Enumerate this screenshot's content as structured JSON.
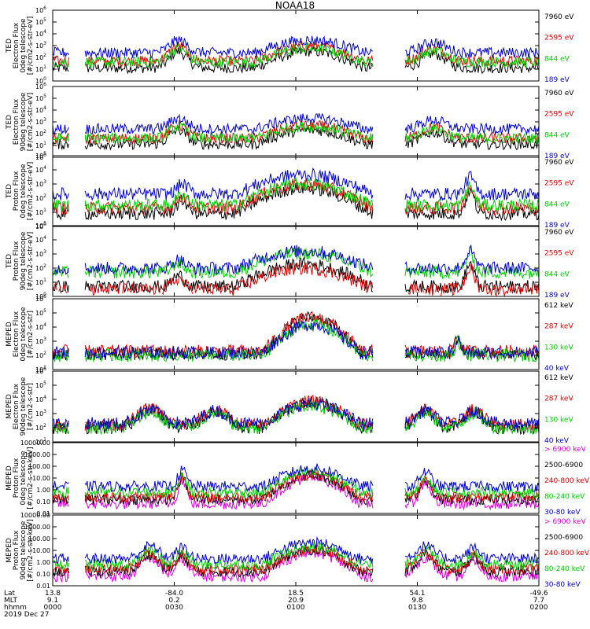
{
  "title": "NOAA18",
  "chart_data": [
    {
      "type": "line",
      "ylabel": [
        "TED",
        "Electron Flux",
        "0deg telescope",
        "[#/cm2-s-str-eV]"
      ],
      "y_ticks": [
        "10^0",
        "10^1",
        "10^2",
        "10^3",
        "10^4",
        "10^5",
        "10^6"
      ],
      "ylim_log10": [
        0,
        6
      ],
      "series": [
        {
          "name": "7960 eV",
          "color": "#000000",
          "profile": "ted_e0",
          "level": 1.1
        },
        {
          "name": "2595 eV",
          "color": "#dd0000",
          "profile": "ted_e0",
          "level": 1.7
        },
        {
          "name": "844 eV",
          "color": "#00cc00",
          "profile": "ted_e0",
          "level": 1.6
        },
        {
          "name": "189 eV",
          "color": "#0000cc",
          "profile": "ted_e0",
          "level": 2.4
        }
      ]
    },
    {
      "type": "line",
      "ylabel": [
        "TED",
        "Electron Flux",
        "90deg telescope",
        "[#/cm2-s-str-eV]"
      ],
      "y_ticks": [
        "10^0",
        "10^1",
        "10^2",
        "10^3",
        "10^4",
        "10^5",
        "10^6"
      ],
      "ylim_log10": [
        0,
        6
      ],
      "series": [
        {
          "name": "7960 eV",
          "color": "#000000",
          "profile": "ted_e90",
          "level": 1.1
        },
        {
          "name": "2595 eV",
          "color": "#dd0000",
          "profile": "ted_e90",
          "level": 1.6
        },
        {
          "name": "844 eV",
          "color": "#00cc00",
          "profile": "ted_e90",
          "level": 1.6
        },
        {
          "name": "189 eV",
          "color": "#0000cc",
          "profile": "ted_e90",
          "level": 2.4
        }
      ]
    },
    {
      "type": "line",
      "ylabel": [
        "TED",
        "Proton Flux",
        "0deg telescope",
        "[#/cm2-s-str-eV]"
      ],
      "y_ticks": [
        "10^0",
        "10^1",
        "10^2",
        "10^3",
        "10^4",
        "10^5"
      ],
      "ylim_log10": [
        0,
        5
      ],
      "series": [
        {
          "name": "7960 eV",
          "color": "#000000",
          "profile": "ted_p0",
          "level": 0.9
        },
        {
          "name": "2595 eV",
          "color": "#dd0000",
          "profile": "ted_p0",
          "level": 1.3
        },
        {
          "name": "844 eV",
          "color": "#00cc00",
          "profile": "ted_p0",
          "level": 1.5
        },
        {
          "name": "189 eV",
          "color": "#0000cc",
          "profile": "ted_p0",
          "level": 2.3
        }
      ]
    },
    {
      "type": "line",
      "ylabel": [
        "TED",
        "Proton Flux",
        "90deg telescope",
        "[#/cm2-s-str-eV]"
      ],
      "y_ticks": [
        "10^0",
        "10^1",
        "10^2",
        "10^3",
        "10^4",
        "10^5"
      ],
      "ylim_log10": [
        0,
        5
      ],
      "series": [
        {
          "name": "7960 eV",
          "color": "#000000",
          "profile": "ted_p90",
          "level": 0.7
        },
        {
          "name": "2595 eV",
          "color": "#dd0000",
          "profile": "ted_p90",
          "level": 0.5
        },
        {
          "name": "844 eV",
          "color": "#00cc00",
          "profile": "ted_p90",
          "level": 1.7
        },
        {
          "name": "189 eV",
          "color": "#0000cc",
          "profile": "ted_p90",
          "level": 2.0
        }
      ]
    },
    {
      "type": "line",
      "ylabel": [
        "MEPED",
        "Electron Flux",
        "0deg telescope",
        "[#/cm2-s-str]"
      ],
      "y_ticks": [
        "10^1",
        "10^2",
        "10^3",
        "10^4",
        "10^5",
        "10^6"
      ],
      "ylim_log10": [
        1,
        6
      ],
      "series": [
        {
          "name": "612 keV",
          "color": "#000000",
          "profile": "mep_e0",
          "level": 2.1
        },
        {
          "name": "287 keV",
          "color": "#dd0000",
          "profile": "mep_e0",
          "level": 2.3
        },
        {
          "name": "130 keV",
          "color": "#00cc00",
          "profile": "mep_e0",
          "level": 2.0
        },
        {
          "name": "40 keV",
          "color": "#0000cc",
          "profile": "mep_e0",
          "level": 2.2
        }
      ]
    },
    {
      "type": "line",
      "ylabel": [
        "MEPED",
        "Electron Flux",
        "90deg telescope",
        "[#/cm2-s-str]"
      ],
      "y_ticks": [
        "10^1",
        "10^2",
        "10^3",
        "10^4",
        "10^5",
        "10^6"
      ],
      "ylim_log10": [
        1,
        6
      ],
      "series": [
        {
          "name": "612 keV",
          "color": "#000000",
          "profile": "mep_e90",
          "level": 2.0
        },
        {
          "name": "287 keV",
          "color": "#dd0000",
          "profile": "mep_e90",
          "level": 2.2
        },
        {
          "name": "130 keV",
          "color": "#00cc00",
          "profile": "mep_e90",
          "level": 2.0
        },
        {
          "name": "40 keV",
          "color": "#0000cc",
          "profile": "mep_e90",
          "level": 2.3
        }
      ]
    },
    {
      "type": "line",
      "ylabel": [
        "MEPED",
        "Proton Flux",
        "0deg telescope",
        "[#/cm2-s-str-keV]"
      ],
      "y_ticks": [
        "0.01",
        "0.10",
        "1.00",
        "10.00",
        "100.00",
        "1000.00",
        "10000.00"
      ],
      "ylim_log10": [
        -2,
        4
      ],
      "series": [
        {
          "name": "> 6900 keV",
          "color": "#dd00dd",
          "profile": "mep_p0",
          "level": -1.2
        },
        {
          "name": "2500-6900",
          "color": "#000000",
          "profile": "mep_p0",
          "level": -0.8
        },
        {
          "name": "240-800 keV",
          "color": "#dd0000",
          "profile": "mep_p0",
          "level": -0.6
        },
        {
          "name": "80-240 keV",
          "color": "#00cc00",
          "profile": "mep_p0",
          "level": -0.2
        },
        {
          "name": "30-80 keV",
          "color": "#0000cc",
          "profile": "mep_p0",
          "level": 0.3
        }
      ]
    },
    {
      "type": "line",
      "ylabel": [
        "MEPED",
        "Proton Flux",
        "90deg telescope",
        "[#/cm2-s-str-keV]"
      ],
      "y_ticks": [
        "0.01",
        "0.10",
        "1.00",
        "10.00",
        "100.00",
        "1000.00",
        "10000.00"
      ],
      "ylim_log10": [
        -2,
        4
      ],
      "series": [
        {
          "name": "> 6900 keV",
          "color": "#dd00dd",
          "profile": "mep_p90",
          "level": -1.2
        },
        {
          "name": "2500-6900",
          "color": "#000000",
          "profile": "mep_p90",
          "level": -0.8
        },
        {
          "name": "240-800 keV",
          "color": "#dd0000",
          "profile": "mep_p90",
          "level": -0.6
        },
        {
          "name": "80-240 keV",
          "color": "#00cc00",
          "profile": "mep_p90",
          "level": -0.2
        },
        {
          "name": "30-80 keV",
          "color": "#0000cc",
          "profile": "mep_p90",
          "level": 0.3
        }
      ]
    }
  ],
  "x_axis": {
    "row_labels": [
      "Lat",
      "MLT",
      "hhmm"
    ],
    "ticks": [
      {
        "time": "0000",
        "lat": "13.8",
        "mlt": "9.1"
      },
      {
        "time": "0030",
        "lat": "-84.0",
        "mlt": "0.2"
      },
      {
        "time": "0100",
        "lat": "18.5",
        "mlt": "20.9"
      },
      {
        "time": "0130",
        "lat": "54.1",
        "mlt": "9.8"
      },
      {
        "time": "0200",
        "lat": "-49.6",
        "mlt": "7.7"
      }
    ],
    "date": "2019 Dec 27"
  }
}
